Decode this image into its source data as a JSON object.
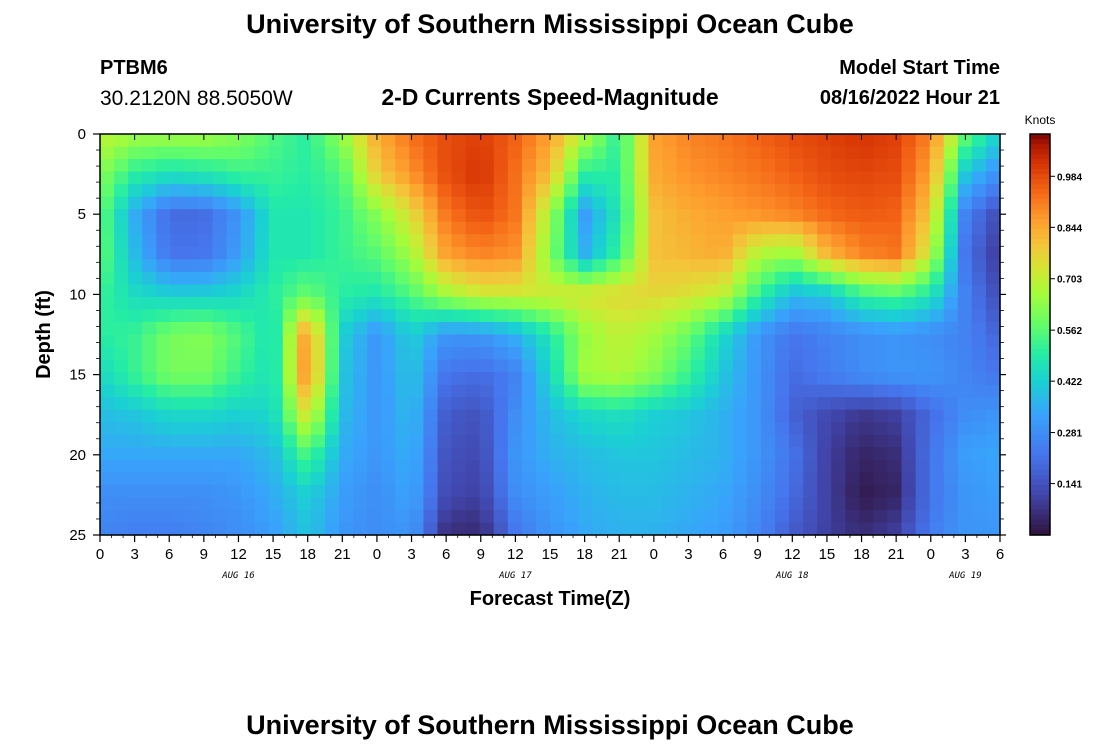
{
  "header": {
    "title": "University of Southern Mississippi Ocean Cube",
    "station_id": "PTBM6",
    "coords": "30.2120N  88.5050W",
    "subtitle": "2-D Currents Speed-Magnitude",
    "model_start_label": "Model Start Time",
    "model_start_value": "08/16/2022 Hour 21"
  },
  "footer": {
    "title": "University of Southern Mississippi Ocean Cube"
  },
  "chart_data": {
    "type": "heatmap",
    "title": "2-D Currents Speed-Magnitude",
    "xlabel": "Forecast Time(Z)",
    "ylabel": "Depth (ft)",
    "x_unit": "hours from Aug 16 00Z",
    "x_range": [
      0,
      78
    ],
    "y_range": [
      0,
      25
    ],
    "y_inverted": true,
    "x_ticks": [
      "0",
      "3",
      "6",
      "9",
      "12",
      "15",
      "18",
      "21",
      "0",
      "3",
      "6",
      "9",
      "12",
      "15",
      "18",
      "21",
      "0",
      "3",
      "6",
      "9",
      "12",
      "15",
      "18",
      "21",
      "0",
      "3",
      "6"
    ],
    "date_labels": [
      {
        "hour": 12,
        "label": "AUG 16"
      },
      {
        "hour": 36,
        "label": "AUG 17"
      },
      {
        "hour": 60,
        "label": "AUG 18"
      },
      {
        "hour": 75,
        "label": "AUG 19"
      }
    ],
    "y_ticks": [
      0,
      5,
      10,
      15,
      20,
      25
    ],
    "colorbar": {
      "unit": "Knots",
      "range": [
        0.0,
        1.1
      ],
      "ticks": [
        "0.984",
        "0.844",
        "0.703",
        "0.562",
        "0.422",
        "0.281",
        "0.141"
      ]
    },
    "grid": false,
    "depths": [
      0,
      2.5,
      5,
      7.5,
      10,
      12.5,
      15,
      17.5,
      20,
      22.5,
      25
    ],
    "times": [
      0,
      3,
      6,
      9,
      12,
      15,
      18,
      21,
      24,
      27,
      30,
      33,
      36,
      39,
      42,
      45,
      48,
      51,
      54,
      57,
      60,
      63,
      66,
      69,
      72,
      75,
      78
    ],
    "values": [
      [
        0.7,
        0.66,
        0.66,
        0.66,
        0.62,
        0.55,
        0.5,
        0.64,
        0.84,
        0.93,
        0.98,
        1.0,
        0.95,
        0.86,
        0.68,
        0.5,
        0.86,
        0.9,
        0.92,
        0.95,
        0.98,
        1.0,
        1.02,
        1.0,
        0.9,
        0.58,
        0.42
      ],
      [
        0.62,
        0.5,
        0.46,
        0.48,
        0.52,
        0.52,
        0.5,
        0.55,
        0.78,
        0.88,
        0.98,
        1.02,
        0.93,
        0.8,
        0.5,
        0.5,
        0.84,
        0.88,
        0.9,
        0.92,
        0.95,
        0.98,
        0.99,
        0.98,
        0.85,
        0.4,
        0.28
      ],
      [
        0.58,
        0.35,
        0.2,
        0.2,
        0.3,
        0.48,
        0.48,
        0.52,
        0.62,
        0.75,
        0.92,
        0.98,
        0.92,
        0.66,
        0.32,
        0.48,
        0.8,
        0.84,
        0.86,
        0.88,
        0.9,
        0.94,
        0.96,
        0.95,
        0.78,
        0.25,
        0.12
      ],
      [
        0.58,
        0.38,
        0.22,
        0.22,
        0.32,
        0.48,
        0.48,
        0.52,
        0.56,
        0.66,
        0.86,
        0.9,
        0.88,
        0.62,
        0.36,
        0.52,
        0.8,
        0.82,
        0.84,
        0.68,
        0.64,
        0.82,
        0.9,
        0.92,
        0.7,
        0.22,
        0.08
      ],
      [
        0.52,
        0.45,
        0.42,
        0.42,
        0.44,
        0.5,
        0.58,
        0.5,
        0.48,
        0.55,
        0.66,
        0.72,
        0.72,
        0.72,
        0.74,
        0.76,
        0.76,
        0.74,
        0.7,
        0.52,
        0.38,
        0.4,
        0.52,
        0.55,
        0.48,
        0.25,
        0.12
      ],
      [
        0.5,
        0.52,
        0.6,
        0.62,
        0.55,
        0.46,
        0.88,
        0.42,
        0.3,
        0.42,
        0.3,
        0.3,
        0.36,
        0.48,
        0.64,
        0.7,
        0.66,
        0.58,
        0.44,
        0.3,
        0.22,
        0.25,
        0.28,
        0.3,
        0.28,
        0.25,
        0.18
      ],
      [
        0.44,
        0.52,
        0.6,
        0.6,
        0.52,
        0.46,
        0.9,
        0.4,
        0.3,
        0.4,
        0.22,
        0.2,
        0.25,
        0.44,
        0.66,
        0.68,
        0.62,
        0.52,
        0.4,
        0.3,
        0.2,
        0.24,
        0.28,
        0.3,
        0.3,
        0.26,
        0.22
      ],
      [
        0.38,
        0.4,
        0.44,
        0.44,
        0.42,
        0.44,
        0.75,
        0.38,
        0.3,
        0.38,
        0.16,
        0.14,
        0.28,
        0.38,
        0.44,
        0.46,
        0.42,
        0.4,
        0.36,
        0.3,
        0.18,
        0.12,
        0.08,
        0.1,
        0.2,
        0.28,
        0.3
      ],
      [
        0.34,
        0.34,
        0.34,
        0.34,
        0.34,
        0.38,
        0.55,
        0.35,
        0.3,
        0.36,
        0.14,
        0.12,
        0.3,
        0.36,
        0.38,
        0.4,
        0.4,
        0.38,
        0.36,
        0.3,
        0.22,
        0.1,
        0.04,
        0.06,
        0.22,
        0.32,
        0.34
      ],
      [
        0.28,
        0.28,
        0.28,
        0.28,
        0.3,
        0.35,
        0.42,
        0.32,
        0.28,
        0.34,
        0.12,
        0.1,
        0.28,
        0.32,
        0.36,
        0.38,
        0.38,
        0.36,
        0.34,
        0.28,
        0.2,
        0.1,
        0.02,
        0.04,
        0.22,
        0.3,
        0.32
      ],
      [
        0.26,
        0.24,
        0.24,
        0.26,
        0.28,
        0.32,
        0.4,
        0.3,
        0.28,
        0.3,
        0.06,
        0.05,
        0.22,
        0.3,
        0.34,
        0.36,
        0.36,
        0.34,
        0.32,
        0.26,
        0.16,
        0.1,
        0.06,
        0.1,
        0.24,
        0.3,
        0.3
      ]
    ]
  }
}
